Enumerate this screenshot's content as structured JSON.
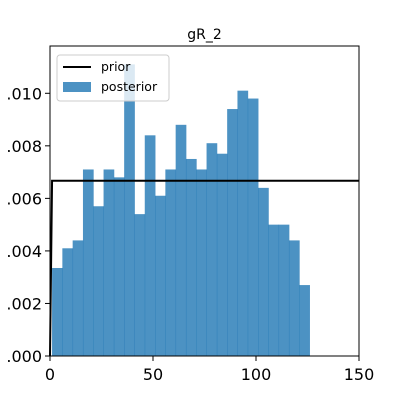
{
  "chart_data": {
    "type": "bar",
    "title": "gR_2",
    "xlabel": "",
    "ylabel": "",
    "xlim": [
      0,
      150
    ],
    "ylim": [
      0.0,
      0.0118
    ],
    "xticks": [
      0,
      50,
      100,
      150
    ],
    "xtick_labels": [
      "0",
      "50",
      "100",
      "150"
    ],
    "yticks": [
      0.0,
      0.002,
      0.004,
      0.006,
      0.008,
      0.01
    ],
    "ytick_labels": [
      ".000",
      ".002",
      ".004",
      ".006",
      ".008",
      ".010"
    ],
    "grid": false,
    "legend_position": "top-left",
    "series": [
      {
        "name": "prior",
        "kind": "line",
        "color": "#000000",
        "x": [
          0.0,
          1.0,
          150.0
        ],
        "y": [
          0.0,
          0.00667,
          0.00667
        ]
      },
      {
        "name": "posterior",
        "kind": "histogram",
        "color": "#1f77b4",
        "bin_width": 5.0,
        "bin_start": 1.0,
        "values": [
          0.00335,
          0.0041,
          0.0044,
          0.0071,
          0.0057,
          0.0071,
          0.0068,
          0.0111,
          0.0054,
          0.0084,
          0.0061,
          0.0071,
          0.0088,
          0.0075,
          0.0071,
          0.0081,
          0.0077,
          0.0094,
          0.0101,
          0.0098,
          0.0064,
          0.005,
          0.005,
          0.0044,
          0.0027
        ]
      }
    ]
  }
}
